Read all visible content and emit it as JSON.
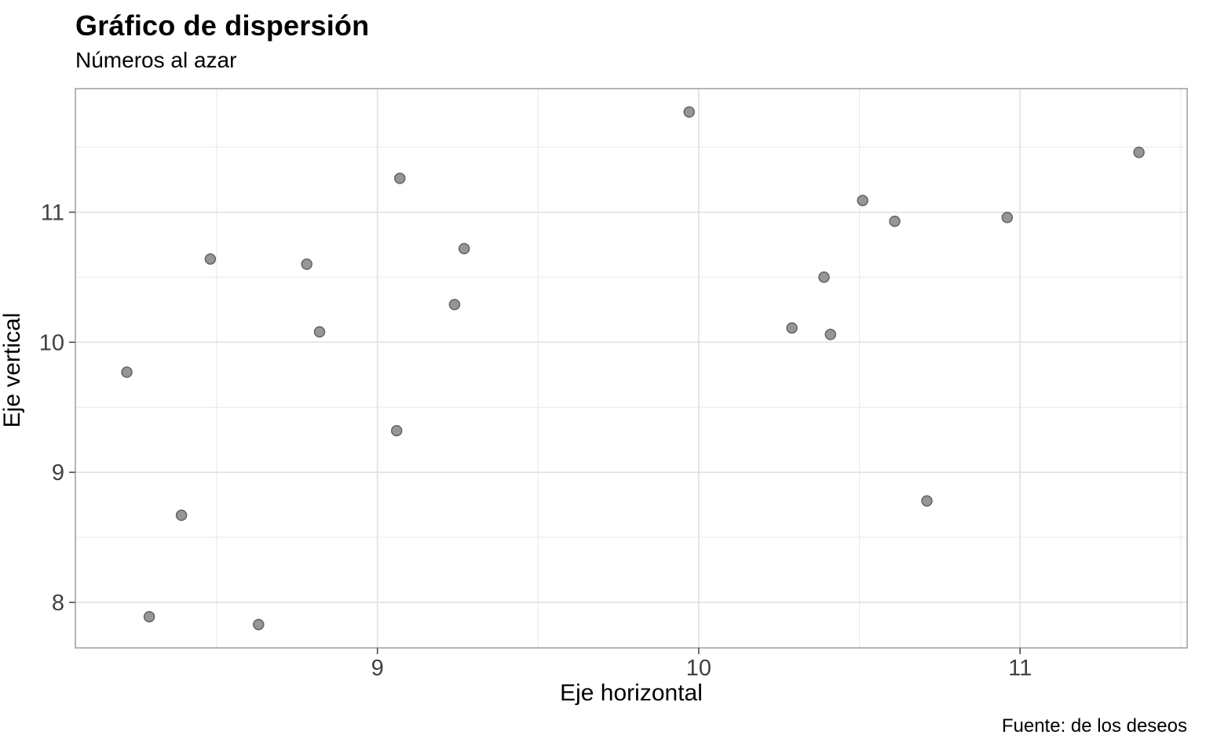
{
  "header": {
    "title": "Gráfico de dispersión",
    "subtitle": "Números al azar"
  },
  "colors": {
    "background": "#ffffff",
    "panel_background": "#ffffff",
    "panel_border": "#a3a3a3",
    "grid_major": "#e1e1e1",
    "grid_minor": "#e9e9e9",
    "tick_mark": "#4d4d4d",
    "tick_label": "#404040",
    "point_fill": "#969696",
    "point_stroke": "#636363",
    "text": "#000000"
  },
  "chart_data": {
    "type": "scatter",
    "title": "Gráfico de dispersión",
    "subtitle": "Números al azar",
    "xlabel": "Eje horizontal",
    "ylabel": "Eje vertical",
    "caption": "Fuente: de los deseos",
    "legend": "none",
    "grid": true,
    "xlim": [
      8.06,
      11.52
    ],
    "ylim": [
      7.65,
      11.95
    ],
    "x_ticks": [
      9,
      10,
      11
    ],
    "y_ticks": [
      8,
      9,
      10,
      11
    ],
    "x_minor_ticks": [
      8.5,
      9.5,
      10.5,
      11.5
    ],
    "y_minor_ticks": [
      8.5,
      9.5,
      10.5,
      11.5
    ],
    "point_style": {
      "radius": 6.5,
      "stroke_width": 1.5
    },
    "points": [
      [
        9.97,
        11.77
      ],
      [
        11.37,
        11.46
      ],
      [
        9.07,
        11.26
      ],
      [
        10.51,
        11.09
      ],
      [
        10.96,
        10.96
      ],
      [
        10.61,
        10.93
      ],
      [
        9.27,
        10.72
      ],
      [
        8.48,
        10.64
      ],
      [
        8.78,
        10.6
      ],
      [
        10.39,
        10.5
      ],
      [
        9.24,
        10.29
      ],
      [
        10.29,
        10.11
      ],
      [
        8.82,
        10.08
      ],
      [
        10.41,
        10.06
      ],
      [
        8.22,
        9.77
      ],
      [
        9.06,
        9.32
      ],
      [
        10.71,
        8.78
      ],
      [
        8.39,
        8.67
      ],
      [
        8.29,
        7.89
      ],
      [
        8.63,
        7.83
      ]
    ]
  }
}
